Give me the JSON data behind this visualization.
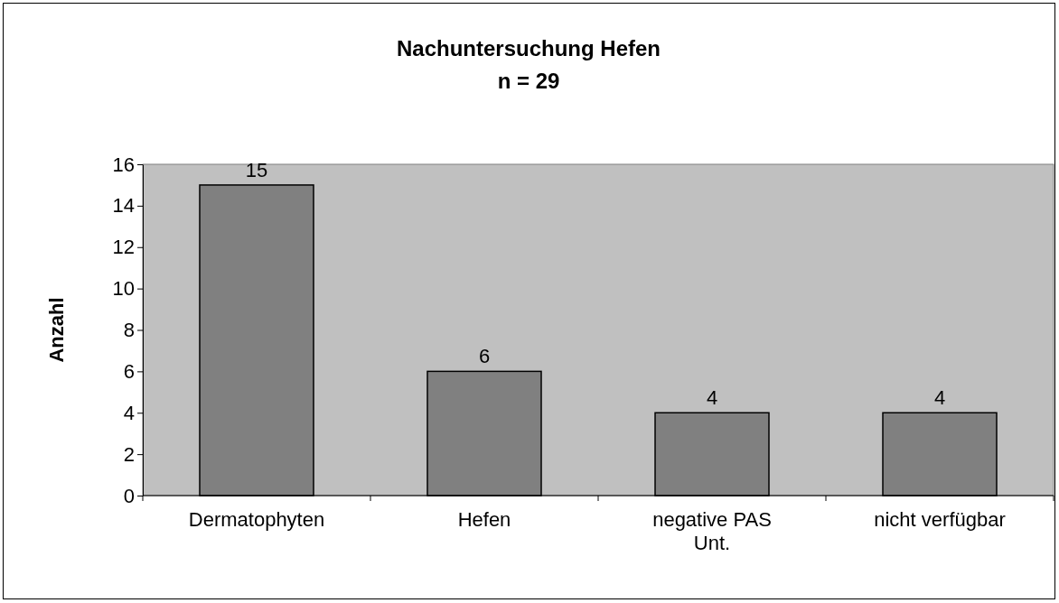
{
  "chart_data": {
    "type": "bar",
    "title": "Nachuntersuchung Hefen",
    "subtitle": "n = 29",
    "ylabel": "Anzahl",
    "categories": [
      "Dermatophyten",
      "Hefen",
      "negative PAS Unt.",
      "nicht verfügbar"
    ],
    "values": [
      15,
      6,
      4,
      4
    ],
    "color": "#808080",
    "ylim": [
      0,
      16
    ],
    "yticks": [
      0,
      2,
      4,
      6,
      8,
      10,
      12,
      14,
      16
    ],
    "data_labels": true
  }
}
